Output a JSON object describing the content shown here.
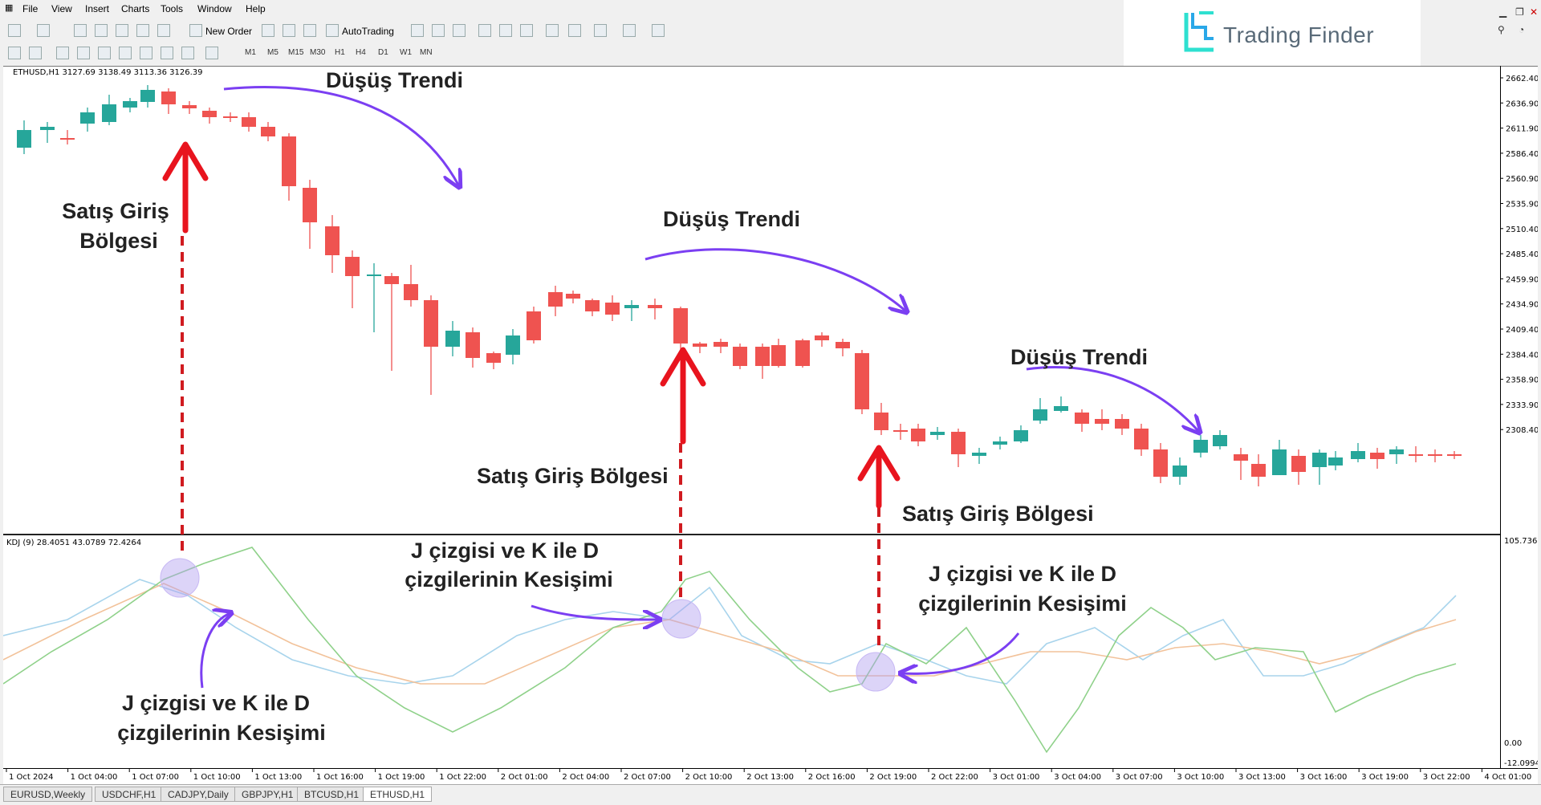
{
  "menu": [
    "File",
    "View",
    "Insert",
    "Charts",
    "Tools",
    "Window",
    "Help"
  ],
  "toolbar": {
    "new_order": "New Order",
    "autotrading": "AutoTrading",
    "timeframes": [
      "M1",
      "M5",
      "M15",
      "M30",
      "H1",
      "H4",
      "D1",
      "W1",
      "MN"
    ]
  },
  "brand": {
    "name": "Trading Finder"
  },
  "chart_data": {
    "type": "candlestick",
    "symbol_header": "ETHUSD,H1  3127.69 3138.49 3113.36 3126.39",
    "price_axis": [
      "2662.40",
      "2636.90",
      "2611.90",
      "2586.40",
      "2560.90",
      "2535.90",
      "2510.40",
      "2485.40",
      "2459.90",
      "2434.90",
      "2409.40",
      "2384.40",
      "2358.90",
      "2333.90",
      "2308.40"
    ],
    "time_axis": [
      "1 Oct 2024",
      "1 Oct 04:00",
      "1 Oct 07:00",
      "1 Oct 10:00",
      "1 Oct 13:00",
      "1 Oct 16:00",
      "1 Oct 19:00",
      "1 Oct 22:00",
      "2 Oct 01:00",
      "2 Oct 04:00",
      "2 Oct 07:00",
      "2 Oct 10:00",
      "2 Oct 13:00",
      "2 Oct 16:00",
      "2 Oct 19:00",
      "2 Oct 22:00",
      "3 Oct 01:00",
      "3 Oct 04:00",
      "3 Oct 07:00",
      "3 Oct 10:00",
      "3 Oct 13:00",
      "3 Oct 16:00",
      "3 Oct 19:00",
      "3 Oct 22:00",
      "4 Oct 01:00"
    ],
    "indicator": {
      "header": "KDJ (9) 28.4051 43.0789 72.4264",
      "axis": [
        "105.7369",
        "0.00",
        "-12.0994"
      ],
      "colors": {
        "j": "#8fd18a",
        "k": "#a8d4ec",
        "d": "#f2c29a"
      }
    },
    "annotations": {
      "trend": "Düşüş Trendi",
      "entry_two_line": [
        "Satış Giriş",
        "Bölgesi"
      ],
      "entry": "Satış Giriş Bölgesi",
      "cross": [
        "J çizgisi ve K ile D",
        "çizgilerinin Kesişimi"
      ]
    },
    "colors": {
      "bull": "#26a69a",
      "bear": "#ef5350",
      "arrow_red": "#e8141e",
      "arrow_purple": "#7b3ff2"
    }
  },
  "tabs": [
    "EURUSD,Weekly",
    "USDCHF,H1",
    "CADJPY,Daily",
    "GBPJPY,H1",
    "BTCUSD,H1",
    "ETHUSD,H1"
  ],
  "active_tab": "ETHUSD,H1"
}
